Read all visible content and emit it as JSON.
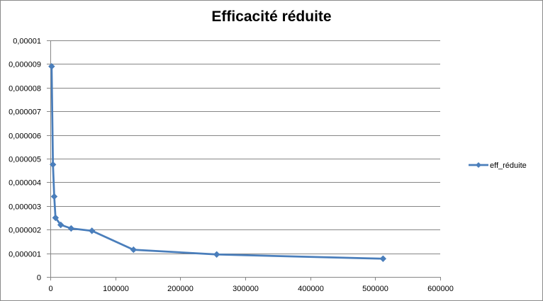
{
  "chart_data": {
    "type": "line",
    "title": "Efficacité réduite",
    "xlabel": "",
    "ylabel": "",
    "xlim": [
      0,
      600000
    ],
    "ylim": [
      0,
      1e-05
    ],
    "x_ticks": [
      0,
      100000,
      200000,
      300000,
      400000,
      500000,
      600000
    ],
    "x_tick_labels": [
      "0",
      "100000",
      "200000",
      "300000",
      "400000",
      "500000",
      "600000"
    ],
    "y_ticks": [
      0,
      1e-06,
      2e-06,
      3e-06,
      4e-06,
      5e-06,
      6e-06,
      7e-06,
      8e-06,
      9e-06,
      1e-05
    ],
    "y_tick_labels": [
      "0",
      "0,000001",
      "0,000002",
      "0,000003",
      "0,000004",
      "0,000005",
      "0,000006",
      "0,000007",
      "0,000008",
      "0,000009",
      "0,00001"
    ],
    "grid": "horizontal",
    "legend_position": "right",
    "series": [
      {
        "name": "eff_réduite",
        "color": "#4a7ebb",
        "marker": "diamond",
        "x": [
          2000,
          4000,
          6000,
          8000,
          16000,
          32000,
          64000,
          128000,
          256000,
          512000
        ],
        "y": [
          8.9e-06,
          4.75e-06,
          3.4e-06,
          2.5e-06,
          2.2e-06,
          2.05e-06,
          1.95e-06,
          1.15e-06,
          9.5e-07,
          7.7e-07
        ]
      }
    ]
  }
}
